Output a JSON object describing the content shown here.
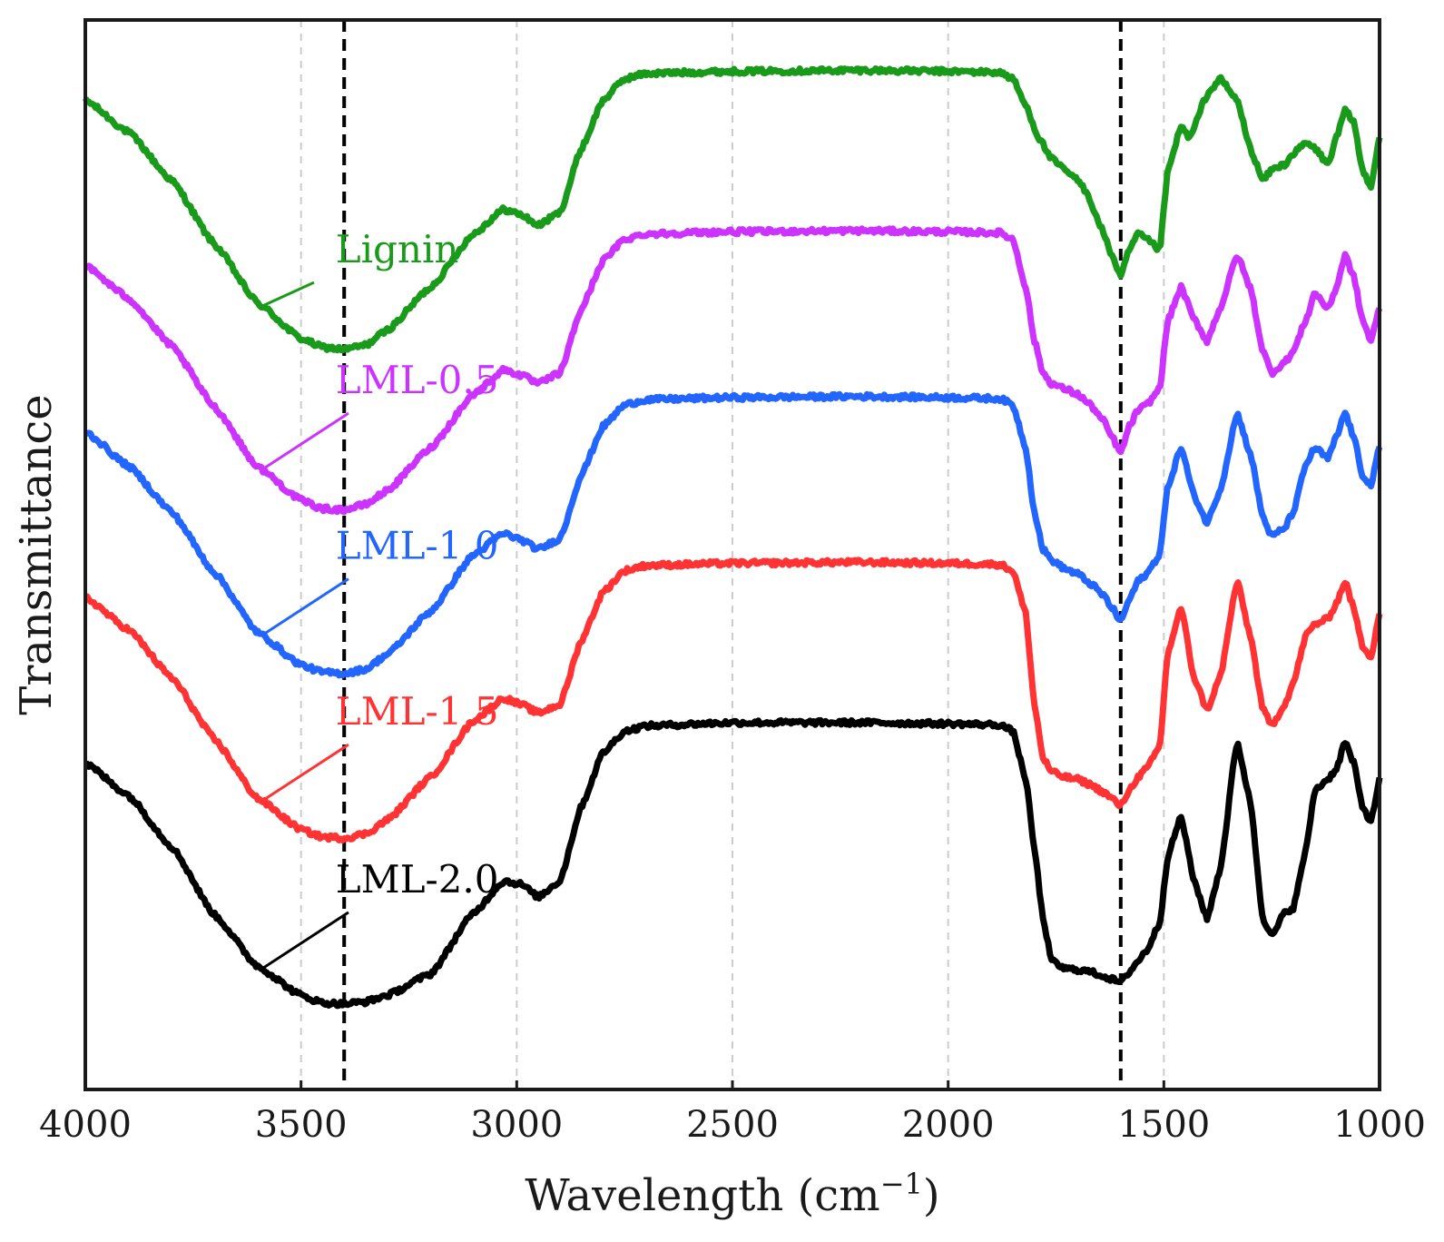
{
  "chart_data": {
    "type": "line",
    "title": "",
    "xlabel": "Wavelength (cm",
    "xlabel_sup": "−1",
    "xlabel_close": ")",
    "ylabel": "Transmittance",
    "xlim": [
      4000,
      1000
    ],
    "ylim": [
      0,
      100
    ],
    "x_reversed": true,
    "x_ticks": [
      4000,
      3500,
      3000,
      2500,
      2000,
      1500,
      1000
    ],
    "x_tick_labels": [
      "4000",
      "3500",
      "3000",
      "2500",
      "2000",
      "1500",
      "1000"
    ],
    "grid": {
      "x": true,
      "y": false,
      "style": "dashed",
      "color": "#cccccc"
    },
    "reference_lines": [
      {
        "x": 3400,
        "style": "dashed",
        "color": "#000000"
      },
      {
        "x": 1600,
        "style": "dashed",
        "color": "#000000"
      }
    ],
    "series": [
      {
        "name": "Lignin",
        "color": "#1a9a1a",
        "label_anchor_x": 3590,
        "x": [
          4000,
          3900,
          3800,
          3700,
          3600,
          3500,
          3450,
          3400,
          3350,
          3300,
          3200,
          3100,
          3030,
          2990,
          2950,
          2900,
          2850,
          2800,
          2750,
          2700,
          2500,
          2200,
          2000,
          1880,
          1850,
          1820,
          1790,
          1760,
          1730,
          1700,
          1680,
          1650,
          1620,
          1600,
          1580,
          1560,
          1540,
          1510,
          1490,
          1460,
          1440,
          1400,
          1370,
          1330,
          1300,
          1270,
          1250,
          1220,
          1200,
          1170,
          1150,
          1120,
          1100,
          1080,
          1060,
          1040,
          1020,
          1000
        ],
        "y": [
          92.5,
          89.5,
          85,
          79,
          73.5,
          70.2,
          69.4,
          69.2,
          69.6,
          71,
          75,
          80,
          82.3,
          81.8,
          80.8,
          82,
          88,
          92.5,
          94.5,
          95,
          95.2,
          95.3,
          95.2,
          95.1,
          94.5,
          92,
          89,
          87,
          86,
          85,
          84,
          81,
          78,
          76,
          78.5,
          80,
          79.5,
          78.5,
          86,
          90,
          89,
          93,
          94.5,
          92.5,
          88,
          85,
          86,
          86.5,
          87.5,
          88.5,
          88,
          86.5,
          89,
          91.5,
          90.5,
          86,
          84.5,
          89
        ]
      },
      {
        "name": "LML-0.5",
        "color": "#cc33ff",
        "label_anchor_x": 3590,
        "x": [
          4000,
          3900,
          3800,
          3700,
          3600,
          3500,
          3450,
          3400,
          3350,
          3300,
          3200,
          3100,
          3030,
          2990,
          2950,
          2900,
          2850,
          2800,
          2750,
          2700,
          2500,
          2200,
          2000,
          1880,
          1850,
          1820,
          1800,
          1780,
          1760,
          1730,
          1700,
          1670,
          1640,
          1620,
          1600,
          1580,
          1560,
          1540,
          1510,
          1490,
          1460,
          1430,
          1400,
          1370,
          1330,
          1300,
          1270,
          1250,
          1220,
          1200,
          1170,
          1150,
          1120,
          1100,
          1080,
          1060,
          1040,
          1020,
          1000
        ],
        "y": [
          77,
          74,
          69.5,
          63.8,
          58.2,
          55.1,
          54.3,
          54.2,
          54.7,
          56,
          60,
          65,
          67.3,
          66.8,
          66,
          67,
          73,
          77.5,
          79.5,
          80,
          80.2,
          80.3,
          80.2,
          80.1,
          79.5,
          75,
          70,
          67,
          66,
          65.5,
          65,
          64,
          62.5,
          61,
          59.5,
          62,
          63.5,
          64,
          65.5,
          72,
          75,
          72,
          70,
          73,
          78,
          75,
          69,
          67,
          68,
          69,
          72,
          74.5,
          73,
          75,
          78,
          76,
          72,
          70,
          73
        ]
      },
      {
        "name": "LML-1.0",
        "color": "#2266ff",
        "label_anchor_x": 3590,
        "x": [
          4000,
          3900,
          3800,
          3700,
          3600,
          3500,
          3450,
          3400,
          3350,
          3300,
          3200,
          3100,
          3030,
          2990,
          2950,
          2900,
          2850,
          2800,
          2750,
          2700,
          2500,
          2200,
          2000,
          1880,
          1850,
          1820,
          1800,
          1780,
          1760,
          1730,
          1700,
          1670,
          1640,
          1620,
          1600,
          1580,
          1560,
          1540,
          1510,
          1490,
          1460,
          1430,
          1400,
          1370,
          1330,
          1300,
          1270,
          1250,
          1220,
          1200,
          1170,
          1150,
          1120,
          1100,
          1080,
          1060,
          1040,
          1020,
          1000
        ],
        "y": [
          61.5,
          58.3,
          54,
          48.3,
          42.7,
          39.7,
          39,
          38.9,
          39.3,
          40.7,
          44.7,
          50,
          52,
          51.4,
          50.5,
          51.5,
          57.5,
          62,
          64,
          64.5,
          64.7,
          64.8,
          64.7,
          64.6,
          64,
          60,
          54,
          50.5,
          49.5,
          48.7,
          48.2,
          47.3,
          46.2,
          45,
          43.8,
          45.8,
          47.5,
          48.2,
          50,
          56.5,
          60,
          55.5,
          53,
          56,
          63.2,
          59.5,
          53.5,
          51.7,
          52.5,
          54,
          58.5,
          60,
          59,
          61,
          63.3,
          61,
          57.5,
          56.5,
          60
        ]
      },
      {
        "name": "LML-1.5",
        "color": "#ff3333",
        "label_anchor_x": 3590,
        "x": [
          4000,
          3900,
          3800,
          3700,
          3600,
          3500,
          3450,
          3400,
          3350,
          3300,
          3200,
          3100,
          3030,
          2990,
          2950,
          2900,
          2850,
          2800,
          2750,
          2700,
          2500,
          2200,
          2000,
          1880,
          1850,
          1820,
          1800,
          1780,
          1760,
          1730,
          1700,
          1670,
          1640,
          1620,
          1600,
          1580,
          1560,
          1540,
          1510,
          1490,
          1460,
          1430,
          1400,
          1370,
          1330,
          1300,
          1270,
          1250,
          1220,
          1200,
          1170,
          1150,
          1120,
          1100,
          1080,
          1060,
          1040,
          1020,
          1000
        ],
        "y": [
          46,
          43,
          38.5,
          32.7,
          27.2,
          24.3,
          23.6,
          23.5,
          23.9,
          25.2,
          29.2,
          34.5,
          36.6,
          36,
          35.2,
          36,
          42,
          46.5,
          48.5,
          49,
          49.2,
          49.3,
          49.2,
          49.1,
          48.5,
          44.5,
          36,
          31,
          29.7,
          29.2,
          29,
          28.5,
          27.8,
          27.2,
          26.5,
          28,
          29.2,
          30,
          32,
          41,
          45,
          38.5,
          35.5,
          38.5,
          47.5,
          42.5,
          35.5,
          34,
          36,
          38,
          42.5,
          43.5,
          44,
          45.5,
          47.5,
          45,
          41.5,
          40.5,
          44.5
        ]
      },
      {
        "name": "LML-2.0",
        "color": "#000000",
        "label_anchor_x": 3590,
        "x": [
          4000,
          3900,
          3800,
          3700,
          3600,
          3500,
          3450,
          3400,
          3350,
          3300,
          3200,
          3100,
          3030,
          2990,
          2950,
          2900,
          2850,
          2800,
          2750,
          2700,
          2500,
          2200,
          2000,
          1880,
          1850,
          1820,
          1800,
          1780,
          1760,
          1730,
          1700,
          1670,
          1640,
          1620,
          1600,
          1580,
          1560,
          1540,
          1510,
          1490,
          1460,
          1430,
          1400,
          1370,
          1330,
          1300,
          1270,
          1250,
          1220,
          1200,
          1170,
          1150,
          1120,
          1100,
          1080,
          1060,
          1040,
          1020,
          1000
        ],
        "y": [
          30.5,
          27.5,
          22.7,
          16.3,
          11.5,
          8.8,
          8.1,
          8,
          8.2,
          8.8,
          10.8,
          16.5,
          19.5,
          19.2,
          18,
          19.5,
          26.5,
          31.5,
          33.5,
          34,
          34.3,
          34.3,
          34.2,
          34.1,
          33.5,
          29,
          22.5,
          16,
          12,
          11.3,
          11.2,
          11,
          10.6,
          10.3,
          10,
          11,
          12,
          13,
          15.5,
          22,
          25.5,
          19.5,
          16,
          20.5,
          32.5,
          27,
          16,
          14.3,
          16.5,
          17,
          22.5,
          28,
          29,
          30,
          32.5,
          30.5,
          26.5,
          25,
          29
        ]
      }
    ],
    "series_labels": [
      {
        "text": "Lignin",
        "color": "#1a9a1a"
      },
      {
        "text": "LML-0.5",
        "color": "#cc33ff"
      },
      {
        "text": "LML-1.0",
        "color": "#2266ff"
      },
      {
        "text": "LML-1.5",
        "color": "#ff3333"
      },
      {
        "text": "LML-2.0",
        "color": "#000000"
      }
    ]
  }
}
